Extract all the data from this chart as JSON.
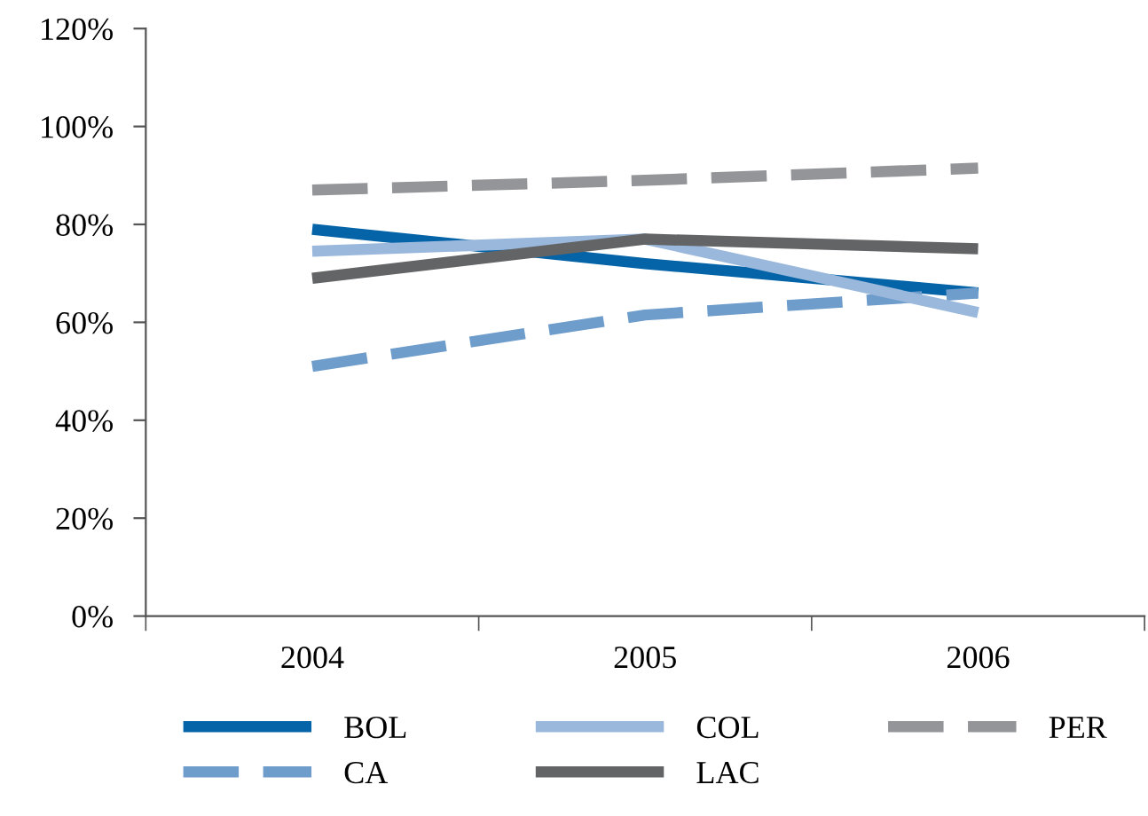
{
  "chart_data": {
    "type": "line",
    "categories": [
      "2004",
      "2005",
      "2006"
    ],
    "ylim": [
      0,
      120
    ],
    "yticks": [
      {
        "value": 0,
        "label": "0%"
      },
      {
        "value": 20,
        "label": "20%"
      },
      {
        "value": 40,
        "label": "40%"
      },
      {
        "value": 60,
        "label": "60%"
      },
      {
        "value": 80,
        "label": "80%"
      },
      {
        "value": 100,
        "label": "100%"
      },
      {
        "value": 120,
        "label": "120%"
      }
    ],
    "grid": false,
    "legend": "bottom",
    "marker": "none",
    "series": [
      {
        "name": "BOL",
        "color": "#0563a8",
        "values": [
          79,
          72,
          66
        ],
        "line_style": "solid"
      },
      {
        "name": "CA",
        "color": "#6e9ccb",
        "values": [
          51,
          61.5,
          66
        ],
        "line_style": "dashed"
      },
      {
        "name": "COL",
        "color": "#9ab8dc",
        "values": [
          74.5,
          77,
          62
        ],
        "line_style": "solid"
      },
      {
        "name": "LAC",
        "color": "#636466",
        "values": [
          69,
          77,
          75
        ],
        "line_style": "solid"
      },
      {
        "name": "PER",
        "color": "#939598",
        "values": [
          87,
          89,
          91.5
        ],
        "line_style": "dashed"
      }
    ]
  }
}
